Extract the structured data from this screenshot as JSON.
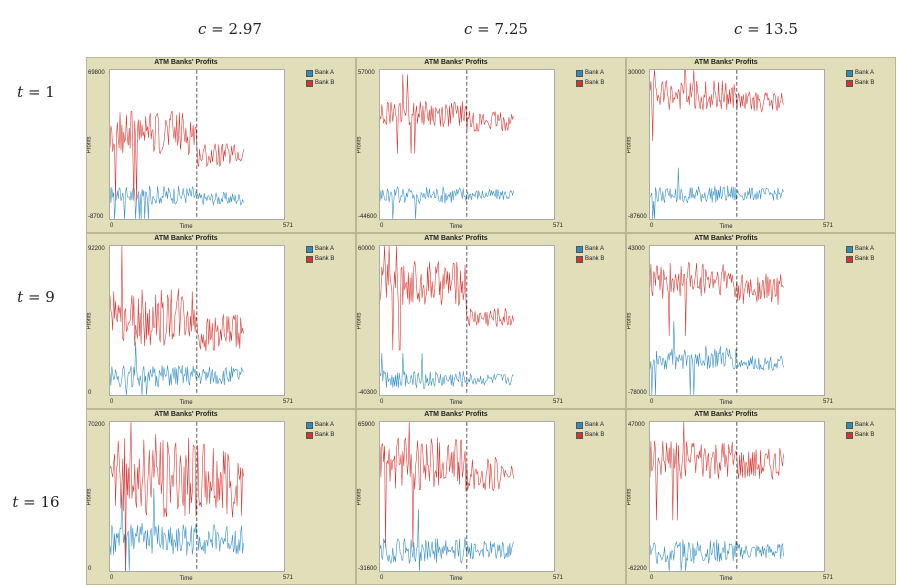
{
  "column_headers": [
    {
      "var": "c",
      "text": " = 2.97"
    },
    {
      "var": "c",
      "text": " = 7.25"
    },
    {
      "var": "c",
      "text": " = 13.5"
    }
  ],
  "row_headers": [
    {
      "var": "t",
      "text": " = 1"
    },
    {
      "var": "t",
      "text": " = 9"
    },
    {
      "var": "t",
      "text": " = 16"
    }
  ],
  "colors": {
    "bank_a": "#2e8bc0",
    "bank_b": "#d9312b",
    "panel_bg": "#e0dfb9"
  },
  "chart_data": [
    {
      "type": "line",
      "title": "ATM Banks' Profits",
      "xlabel": "Time",
      "ylabel": "Profits",
      "xlim": [
        0,
        571
      ],
      "ylim": [
        -8700,
        69800
      ],
      "ymax_label": "69800",
      "ymin_label": "-8700",
      "xmin_label": "0",
      "xmax_label": "571",
      "event_x": 285,
      "legend": [
        "Bank A",
        "Bank B"
      ],
      "series": [
        {
          "name": "Bank A",
          "levels": {
            "before_mean": 4000,
            "before_amp": 5000,
            "after_mean": 2000,
            "after_amp": 3500
          }
        },
        {
          "name": "Bank B",
          "levels": {
            "before_mean": 37000,
            "before_amp": 12000,
            "after_mean": 25000,
            "after_amp": 6000
          }
        }
      ]
    },
    {
      "type": "line",
      "title": "ATM Banks' Profits",
      "xlabel": "Time",
      "ylabel": "Profits",
      "xlim": [
        0,
        571
      ],
      "ylim": [
        -44600,
        57000
      ],
      "ymax_label": "57000",
      "ymin_label": "-44600",
      "xmin_label": "0",
      "xmax_label": "571",
      "event_x": 285,
      "legend": [
        "Bank A",
        "Bank B"
      ],
      "series": [
        {
          "name": "Bank A",
          "levels": {
            "before_mean": -28000,
            "before_amp": 6000,
            "after_mean": -28000,
            "after_amp": 4000
          }
        },
        {
          "name": "Bank B",
          "levels": {
            "before_mean": 27000,
            "before_amp": 9000,
            "after_mean": 22000,
            "after_amp": 7000
          }
        }
      ]
    },
    {
      "type": "line",
      "title": "ATM Banks' Profits",
      "xlabel": "Time",
      "ylabel": "Profits",
      "xlim": [
        0,
        571
      ],
      "ylim": [
        -87600,
        30000
      ],
      "ymax_label": "30000",
      "ymin_label": "-87600",
      "xmin_label": "0",
      "xmax_label": "571",
      "event_x": 285,
      "legend": [
        "Bank A",
        "Bank B"
      ],
      "series": [
        {
          "name": "Bank A",
          "levels": {
            "before_mean": -68000,
            "before_amp": 7000,
            "after_mean": -68000,
            "after_amp": 5000
          }
        },
        {
          "name": "Bank B",
          "levels": {
            "before_mean": 10000,
            "before_amp": 12000,
            "after_mean": 5000,
            "after_amp": 8000
          }
        }
      ]
    },
    {
      "type": "line",
      "title": "ATM Banks' Profits",
      "xlabel": "Time",
      "ylabel": "Profits",
      "xlim": [
        0,
        571
      ],
      "ylim": [
        0,
        92200
      ],
      "ymax_label": "92200",
      "ymin_label": "0",
      "xmin_label": "0",
      "xmax_label": "571",
      "event_x": 285,
      "legend": [
        "Bank A",
        "Bank B"
      ],
      "series": [
        {
          "name": "Bank A",
          "levels": {
            "before_mean": 12000,
            "before_amp": 7000,
            "after_mean": 12000,
            "after_amp": 6000
          }
        },
        {
          "name": "Bank B",
          "levels": {
            "before_mean": 48000,
            "before_amp": 18000,
            "after_mean": 38000,
            "after_amp": 12000
          }
        }
      ]
    },
    {
      "type": "line",
      "title": "ATM Banks' Profits",
      "xlabel": "Time",
      "ylabel": "Profits",
      "xlim": [
        0,
        571
      ],
      "ylim": [
        -40300,
        60000
      ],
      "ymax_label": "60000",
      "ymin_label": "-40300",
      "xmin_label": "0",
      "xmax_label": "571",
      "event_x": 285,
      "legend": [
        "Bank A",
        "Bank B"
      ],
      "series": [
        {
          "name": "Bank A",
          "levels": {
            "before_mean": -30000,
            "before_amp": 6000,
            "after_mean": -30000,
            "after_amp": 4000
          }
        },
        {
          "name": "Bank B",
          "levels": {
            "before_mean": 35000,
            "before_amp": 15000,
            "after_mean": 12000,
            "after_amp": 7000
          }
        }
      ]
    },
    {
      "type": "line",
      "title": "ATM Banks' Profits",
      "xlabel": "Time",
      "ylabel": "Profits",
      "xlim": [
        0,
        571
      ],
      "ylim": [
        -78000,
        43000
      ],
      "ymax_label": "43000",
      "ymin_label": "-78000",
      "xmin_label": "0",
      "xmax_label": "571",
      "event_x": 285,
      "legend": [
        "Bank A",
        "Bank B"
      ],
      "series": [
        {
          "name": "Bank A",
          "levels": {
            "before_mean": -48000,
            "before_amp": 10000,
            "after_mean": -52000,
            "after_amp": 6000
          }
        },
        {
          "name": "Bank B",
          "levels": {
            "before_mean": 15000,
            "before_amp": 15000,
            "after_mean": 8000,
            "after_amp": 13000
          }
        }
      ]
    },
    {
      "type": "line",
      "title": "ATM Banks' Profits",
      "xlabel": "Time",
      "ylabel": "Profits",
      "xlim": [
        0,
        571
      ],
      "ylim": [
        0,
        70200
      ],
      "ymax_label": "70200",
      "ymin_label": "0",
      "xmin_label": "0",
      "xmax_label": "571",
      "event_x": 285,
      "legend": [
        "Bank A",
        "Bank B"
      ],
      "series": [
        {
          "name": "Bank A",
          "levels": {
            "before_mean": 15000,
            "before_amp": 8000,
            "after_mean": 15000,
            "after_amp": 7000
          }
        },
        {
          "name": "Bank B",
          "levels": {
            "before_mean": 45000,
            "before_amp": 20000,
            "after_mean": 42000,
            "after_amp": 18000
          }
        }
      ]
    },
    {
      "type": "line",
      "title": "ATM Banks' Profits",
      "xlabel": "Time",
      "ylabel": "Profits",
      "xlim": [
        0,
        571
      ],
      "ylim": [
        -31600,
        65900
      ],
      "ymax_label": "65900",
      "ymin_label": "-31600",
      "xmin_label": "0",
      "xmax_label": "571",
      "event_x": 285,
      "legend": [
        "Bank A",
        "Bank B"
      ],
      "series": [
        {
          "name": "Bank A",
          "levels": {
            "before_mean": -18000,
            "before_amp": 9000,
            "after_mean": -18000,
            "after_amp": 6000
          }
        },
        {
          "name": "Bank B",
          "levels": {
            "before_mean": 38000,
            "before_amp": 18000,
            "after_mean": 32000,
            "after_amp": 11000
          }
        }
      ]
    },
    {
      "type": "line",
      "title": "ATM Banks' Profits",
      "xlabel": "Time",
      "ylabel": "Profits",
      "xlim": [
        0,
        571
      ],
      "ylim": [
        -62200,
        47000
      ],
      "ymax_label": "47000",
      "ymin_label": "-62200",
      "xmin_label": "0",
      "xmax_label": "571",
      "event_x": 285,
      "legend": [
        "Bank A",
        "Bank B"
      ],
      "series": [
        {
          "name": "Bank A",
          "levels": {
            "before_mean": -48000,
            "before_amp": 9000,
            "after_mean": -48000,
            "after_amp": 6000
          }
        },
        {
          "name": "Bank B",
          "levels": {
            "before_mean": 20000,
            "before_amp": 15000,
            "after_mean": 16000,
            "after_amp": 12000
          }
        }
      ]
    }
  ]
}
